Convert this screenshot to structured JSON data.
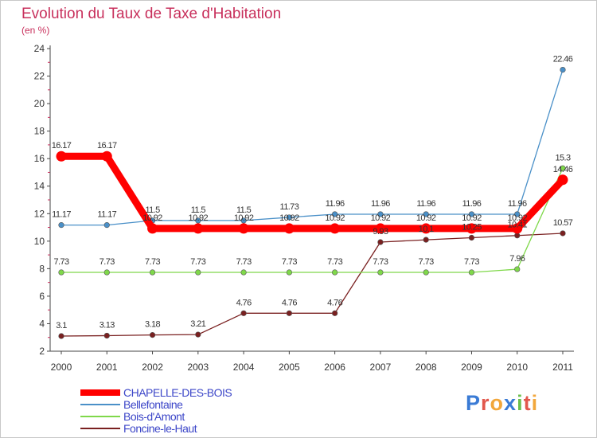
{
  "title": "Evolution du Taux de Taxe d'Habitation",
  "subtitle": "(en %)",
  "logo": {
    "text": "Proxiti",
    "colors": [
      "#3a7bd5",
      "#e2574c",
      "#f2a73b",
      "#3a7bd5",
      "#6abf4b",
      "#e2574c",
      "#f2a73b"
    ]
  },
  "chart_data": {
    "type": "line",
    "title": "Evolution du Taux de Taxe d'Habitation",
    "ylabel": "(en %)",
    "xlabel": "",
    "x": [
      "2000",
      "2001",
      "2002",
      "2003",
      "2004",
      "2005",
      "2006",
      "2007",
      "2008",
      "2009",
      "2010",
      "2011"
    ],
    "ylim": [
      2,
      24
    ],
    "yticks": [
      2,
      4,
      6,
      8,
      10,
      12,
      14,
      16,
      18,
      20,
      22,
      24
    ],
    "grid": false,
    "legend_position": "bottom-left",
    "series": [
      {
        "name": "CHAPELLE-DES-BOIS",
        "color": "#ff0000",
        "emphasis": true,
        "values": [
          16.17,
          16.17,
          10.92,
          10.92,
          10.92,
          10.92,
          10.92,
          10.92,
          10.92,
          10.92,
          10.92,
          14.46
        ],
        "labels": [
          "16.17",
          "16.17",
          "10.92",
          "10.92",
          "10.92",
          "10.92",
          "10.92",
          "10.92",
          "10.92",
          "10.92",
          "10.92",
          "14.46"
        ]
      },
      {
        "name": "Bellefontaine",
        "color": "#4a90c8",
        "values": [
          11.17,
          11.17,
          11.5,
          11.5,
          11.5,
          11.73,
          11.96,
          11.96,
          11.96,
          11.96,
          11.96,
          22.46
        ],
        "labels": [
          "11.17",
          "11.17",
          "11.5",
          "11.5",
          "11.5",
          "11.73",
          "11.96",
          "11.96",
          "11.96",
          "11.96",
          "11.96",
          "22.46"
        ]
      },
      {
        "name": "Bois-d'Amont",
        "color": "#7fd84a",
        "values": [
          7.73,
          7.73,
          7.73,
          7.73,
          7.73,
          7.73,
          7.73,
          7.73,
          7.73,
          7.73,
          7.96,
          15.3
        ],
        "labels": [
          "7.73",
          "7.73",
          "7.73",
          "7.73",
          "7.73",
          "7.73",
          "7.73",
          "7.73",
          "7.73",
          "7.73",
          "7.96",
          "15.3"
        ]
      },
      {
        "name": "Foncine-le-Haut",
        "color": "#7a2020",
        "values": [
          3.1,
          3.13,
          3.18,
          3.21,
          4.76,
          4.76,
          4.76,
          9.93,
          10.1,
          10.25,
          10.41,
          10.57
        ],
        "labels": [
          "3.1",
          "3.13",
          "3.18",
          "3.21",
          "4.76",
          "4.76",
          "4.76",
          "9.93",
          "10.1",
          "10.25",
          "10.41",
          "10.57"
        ]
      }
    ]
  }
}
